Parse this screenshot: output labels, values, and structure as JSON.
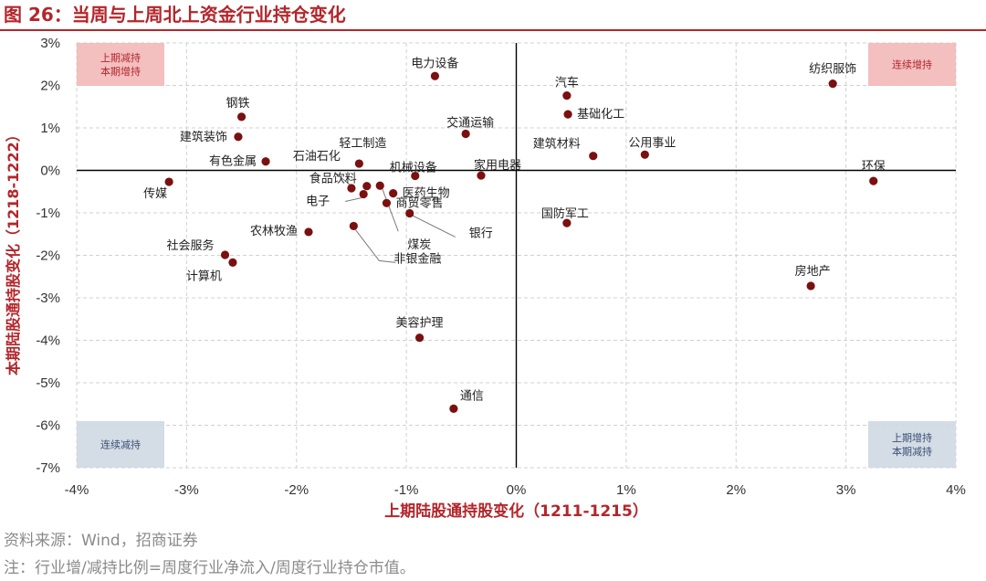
{
  "figure": {
    "title": "图 26：当周与上周北上资金行业持仓变化",
    "source": "资料来源：Wind，招商证券",
    "note": "注：行业增/减持比例=周度行业净流入/周度行业持仓市值。"
  },
  "colors": {
    "title": "#b3262b",
    "point": "#7a1010",
    "grid": "#d0d0d0",
    "red_box": "#f2b8b8",
    "red_text": "#b3262b",
    "blue_box": "#cfd8e3",
    "blue_text": "#3a5073"
  },
  "chart_data": {
    "type": "scatter",
    "xlabel": "上期陆股通持股变化（1211-1215）",
    "ylabel": "本期陆股通持股变化（1218-1222）",
    "xlim": [
      -4,
      4
    ],
    "ylim": [
      -7,
      3
    ],
    "xticks": [
      -4,
      -3,
      -2,
      -1,
      0,
      1,
      2,
      3,
      4
    ],
    "yticks": [
      -7,
      -6,
      -5,
      -4,
      -3,
      -2,
      -1,
      0,
      1,
      2,
      3
    ],
    "tick_format": "percent",
    "grid": true,
    "quadrant_labels": [
      {
        "lines": [
          "上期减持",
          "本期增持"
        ],
        "position": "top-left"
      },
      {
        "lines": [
          "连续增持"
        ],
        "position": "top-right"
      },
      {
        "lines": [
          "连续减持"
        ],
        "position": "bottom-left"
      },
      {
        "lines": [
          "上期增持",
          "本期减持"
        ],
        "position": "bottom-right"
      }
    ],
    "points": [
      {
        "name": "电力设备",
        "x": -0.74,
        "y": 2.22
      },
      {
        "name": "汽车",
        "x": 0.46,
        "y": 1.76
      },
      {
        "name": "基础化工",
        "x": 0.47,
        "y": 1.32
      },
      {
        "name": "纺织服饰",
        "x": 2.88,
        "y": 2.04
      },
      {
        "name": "钢铁",
        "x": -2.5,
        "y": 1.26
      },
      {
        "name": "建筑装饰",
        "x": -2.53,
        "y": 0.79
      },
      {
        "name": "交通运输",
        "x": -0.46,
        "y": 0.86
      },
      {
        "name": "建筑材料",
        "x": 0.7,
        "y": 0.34
      },
      {
        "name": "公用事业",
        "x": 1.17,
        "y": 0.37
      },
      {
        "name": "有色金属",
        "x": -2.28,
        "y": 0.21
      },
      {
        "name": "轻工制造",
        "x": -1.43,
        "y": 0.16
      },
      {
        "name": "石油石化",
        "x": -1.5,
        "y": -0.42
      },
      {
        "name": "机械设备",
        "x": -0.92,
        "y": -0.13
      },
      {
        "name": "家用电器",
        "x": -0.32,
        "y": -0.12
      },
      {
        "name": "环保",
        "x": 3.25,
        "y": -0.25
      },
      {
        "name": "传媒",
        "x": -3.16,
        "y": -0.27
      },
      {
        "name": "食品饮料",
        "x": -1.36,
        "y": -0.37
      },
      {
        "name": "医药生物",
        "x": -1.12,
        "y": -0.54
      },
      {
        "name": "电子",
        "x": -1.39,
        "y": -0.56
      },
      {
        "name": "商贸零售",
        "x": -1.18,
        "y": -0.77
      },
      {
        "name": "煤炭",
        "x": -1.24,
        "y": -0.36
      },
      {
        "name": "银行",
        "x": -0.97,
        "y": -1.01
      },
      {
        "name": "国防军工",
        "x": 0.46,
        "y": -1.24
      },
      {
        "name": "农林牧渔",
        "x": -1.89,
        "y": -1.45
      },
      {
        "name": "非银金融",
        "x": -1.48,
        "y": -1.31
      },
      {
        "name": "社会服务",
        "x": -2.65,
        "y": -1.99
      },
      {
        "name": "计算机",
        "x": -2.58,
        "y": -2.17
      },
      {
        "name": "房地产",
        "x": 2.68,
        "y": -2.72
      },
      {
        "name": "美容护理",
        "x": -0.88,
        "y": -3.94
      },
      {
        "name": "通信",
        "x": -0.57,
        "y": -5.61
      }
    ]
  }
}
